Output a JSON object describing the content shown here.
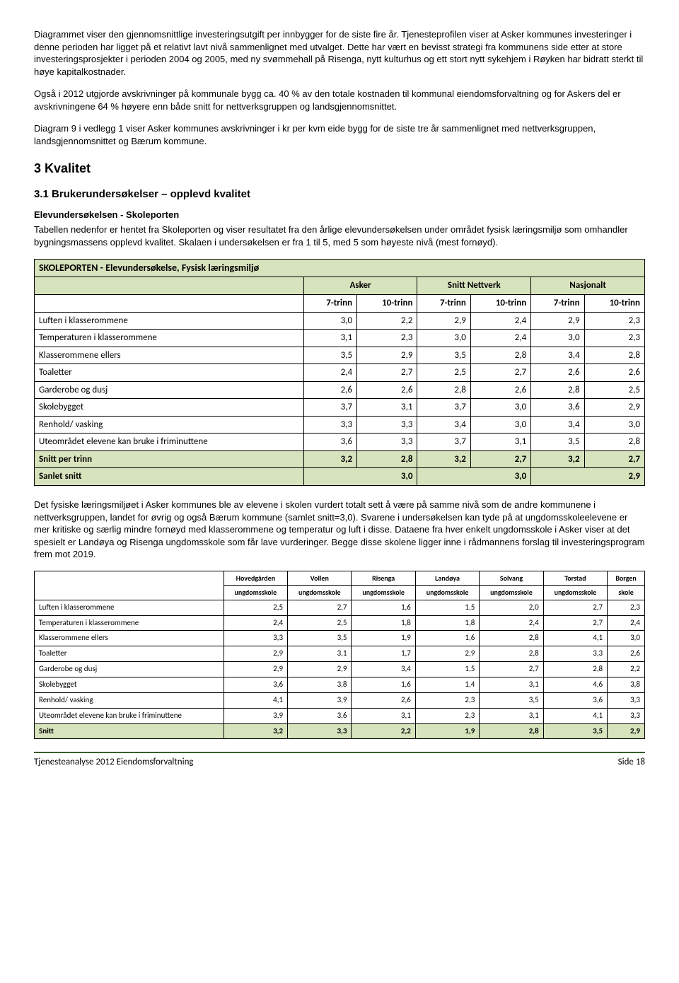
{
  "paras": {
    "p1": "Diagrammet viser den gjennomsnittlige investeringsutgift per innbygger for de siste fire år. Tjenesteprofilen viser at Asker kommunes investeringer i denne perioden har ligget på et relativt lavt nivå sammenlignet med utvalget. Dette har vært en bevisst strategi fra kommunens side etter at store investeringsprosjekter i perioden 2004 og 2005, med ny svømmehall på Risenga, nytt kulturhus og ett stort nytt sykehjem i Røyken har bidratt sterkt til høye kapitalkostnader.",
    "p2": "Også i 2012 utgjorde avskrivninger på kommunale bygg ca. 40 % av den totale kostnaden til kommunal eiendomsforvaltning og for Askers del er avskrivningene 64 % høyere enn både snitt for nettverksgruppen og landsgjennomsnittet.",
    "p3": "Diagram 9 i vedlegg 1 viser Asker kommunes avskrivninger i kr per kvm eide bygg for de siste tre år sammenlignet med nettverksgruppen, landsgjennomsnittet og Bærum kommune.",
    "p4": "Tabellen nedenfor er hentet fra Skoleporten og viser resultatet fra den årlige elevundersøkelsen under området fysisk læringsmiljø som omhandler bygningsmassens opplevd kvalitet. Skalaen i undersøkelsen er fra 1 til 5, med 5 som høyeste nivå (mest fornøyd).",
    "p5": "Det fysiske læringsmiljøet i Asker kommunes ble av elevene i skolen vurdert totalt sett å være på samme nivå som de andre kommunene i nettverksgruppen, landet for øvrig og også Bærum kommune (samlet snitt=3,0). Svarene i undersøkelsen kan tyde på at ungdomsskoleelevene er mer kritiske og særlig mindre fornøyd med klasserommene og temperatur og luft i disse. Dataene fra hver enkelt ungdomsskole i Asker viser at det spesielt er Landøya og Risenga ungdomsskole som får lave vurderinger. Begge disse skolene ligger inne i rådmannens forslag til investeringsprogram frem mot 2019."
  },
  "heads": {
    "h3": "3   Kvalitet",
    "h31": "3.1  Brukerundersøkelser – opplevd kvalitet",
    "elev": "Elevundersøkelsen - Skoleporten"
  },
  "table1": {
    "title": "SKOLEPORTEN - Elevundersøkelse, Fysisk læringsmiljø",
    "groups": [
      "Asker",
      "Snitt Nettverk",
      "Nasjonalt"
    ],
    "cols": [
      "7-trinn",
      "10-trinn",
      "7-trinn",
      "10-trinn",
      "7-trinn",
      "10-trinn"
    ],
    "rows": [
      {
        "label": "Luften i klasserommene",
        "v": [
          "3,0",
          "2,2",
          "2,9",
          "2,4",
          "2,9",
          "2,3"
        ]
      },
      {
        "label": "Temperaturen i klasserommene",
        "v": [
          "3,1",
          "2,3",
          "3,0",
          "2,4",
          "3,0",
          "2,3"
        ]
      },
      {
        "label": "Klasserommene ellers",
        "v": [
          "3,5",
          "2,9",
          "3,5",
          "2,8",
          "3,4",
          "2,8"
        ]
      },
      {
        "label": "Toaletter",
        "v": [
          "2,4",
          "2,7",
          "2,5",
          "2,7",
          "2,6",
          "2,6"
        ]
      },
      {
        "label": "Garderobe og dusj",
        "v": [
          "2,6",
          "2,6",
          "2,8",
          "2,6",
          "2,8",
          "2,5"
        ]
      },
      {
        "label": "Skolebygget",
        "v": [
          "3,7",
          "3,1",
          "3,7",
          "3,0",
          "3,6",
          "2,9"
        ]
      },
      {
        "label": "Renhold/ vasking",
        "v": [
          "3,3",
          "3,3",
          "3,4",
          "3,0",
          "3,4",
          "3,0"
        ]
      },
      {
        "label": "Uteområdet elevene kan bruke i friminuttene",
        "v": [
          "3,6",
          "3,3",
          "3,7",
          "3,1",
          "3,5",
          "2,8"
        ]
      }
    ],
    "snitt": {
      "label": "Snitt per trinn",
      "v": [
        "3,2",
        "2,8",
        "3,2",
        "2,7",
        "3,2",
        "2,7"
      ]
    },
    "sanlet": {
      "label": "Sanlet snitt",
      "v": [
        "3,0",
        "3,0",
        "2,9"
      ]
    }
  },
  "table2": {
    "schools_top": [
      "Hovedgården",
      "Vollen",
      "Risenga",
      "Landøya",
      "Solvang",
      "Torstad",
      "Borgen"
    ],
    "schools_bot": [
      "ungdomsskole",
      "ungdomsskole",
      "ungdomsskole",
      "ungdomsskole",
      "ungdomsskole",
      "ungdomsskole",
      "skole"
    ],
    "rows": [
      {
        "label": "Luften i klasserommene",
        "v": [
          "2,5",
          "2,7",
          "1,6",
          "1,5",
          "2,0",
          "2,7",
          "2,3"
        ]
      },
      {
        "label": "Temperaturen i klasserommene",
        "v": [
          "2,4",
          "2,5",
          "1,8",
          "1,8",
          "2,4",
          "2,7",
          "2,4"
        ]
      },
      {
        "label": "Klasserommene ellers",
        "v": [
          "3,3",
          "3,5",
          "1,9",
          "1,6",
          "2,8",
          "4,1",
          "3,0"
        ]
      },
      {
        "label": "Toaletter",
        "v": [
          "2,9",
          "3,1",
          "1,7",
          "2,9",
          "2,8",
          "3,3",
          "2,6"
        ]
      },
      {
        "label": "Garderobe og dusj",
        "v": [
          "2,9",
          "2,9",
          "3,4",
          "1,5",
          "2,7",
          "2,8",
          "2,2"
        ]
      },
      {
        "label": "Skolebygget",
        "v": [
          "3,6",
          "3,8",
          "1,6",
          "1,4",
          "3,1",
          "4,6",
          "3,8"
        ]
      },
      {
        "label": "Renhold/ vasking",
        "v": [
          "4,1",
          "3,9",
          "2,6",
          "2,3",
          "3,5",
          "3,6",
          "3,3"
        ]
      },
      {
        "label": "Uteområdet elevene kan bruke i friminuttene",
        "v": [
          "3,9",
          "3,6",
          "3,1",
          "2,3",
          "3,1",
          "4,1",
          "3,3"
        ]
      }
    ],
    "snitt": {
      "label": "Snitt",
      "v": [
        "3,2",
        "3,3",
        "2,2",
        "1,9",
        "2,8",
        "3,5",
        "2,9"
      ]
    }
  },
  "footer": {
    "left": "Tjenesteanalyse 2012 Eiendomsforvaltning",
    "right": "Side 18"
  }
}
